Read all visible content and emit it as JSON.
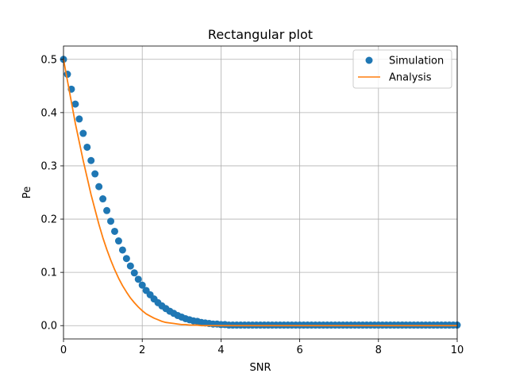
{
  "chart_data": {
    "type": "line",
    "title": "Rectangular plot",
    "xlabel": "SNR",
    "ylabel": "Pe",
    "xlim": [
      0,
      10
    ],
    "ylim": [
      -0.025,
      0.525
    ],
    "xticks": [
      0,
      2,
      4,
      6,
      8,
      10
    ],
    "xtick_labels": [
      "0",
      "2",
      "4",
      "6",
      "8",
      "10"
    ],
    "yticks": [
      0.0,
      0.1,
      0.2,
      0.3,
      0.4,
      0.5
    ],
    "ytick_labels": [
      "0.0",
      "0.1",
      "0.2",
      "0.3",
      "0.4",
      "0.5"
    ],
    "grid": true,
    "legend_position": "top-right",
    "x": [
      0.0,
      0.1,
      0.2,
      0.3,
      0.4,
      0.5,
      0.6,
      0.7,
      0.8,
      0.9,
      1.0,
      1.1,
      1.2,
      1.3,
      1.4,
      1.5,
      1.6,
      1.7,
      1.8,
      1.9,
      2.0,
      2.1,
      2.2,
      2.3,
      2.4,
      2.5,
      2.6,
      2.7,
      2.8,
      2.9,
      3.0,
      3.1,
      3.2,
      3.3,
      3.4,
      3.5,
      3.6,
      3.7,
      3.8,
      3.9,
      4.0,
      4.1,
      4.2,
      4.3,
      4.4,
      4.5,
      4.6,
      4.7,
      4.8,
      4.9,
      5.0,
      5.1,
      5.2,
      5.3,
      5.4,
      5.5,
      5.6,
      5.7,
      5.8,
      5.9,
      6.0,
      6.1,
      6.2,
      6.3,
      6.4,
      6.5,
      6.6,
      6.7,
      6.8,
      6.9,
      7.0,
      7.1,
      7.2,
      7.3,
      7.4,
      7.5,
      7.6,
      7.7,
      7.8,
      7.9,
      8.0,
      8.1,
      8.2,
      8.3,
      8.4,
      8.5,
      8.6,
      8.7,
      8.8,
      8.9,
      9.0,
      9.1,
      9.2,
      9.3,
      9.4,
      9.5,
      9.6,
      9.7,
      9.8,
      9.9,
      10.0
    ],
    "series": [
      {
        "name": "Simulation",
        "style": "markers",
        "color": "#1f77b4",
        "values": [
          0.5,
          0.472,
          0.444,
          0.416,
          0.388,
          0.361,
          0.335,
          0.31,
          0.285,
          0.261,
          0.238,
          0.216,
          0.196,
          0.177,
          0.159,
          0.142,
          0.126,
          0.112,
          0.099,
          0.087,
          0.076,
          0.066,
          0.058,
          0.05,
          0.043,
          0.037,
          0.032,
          0.027,
          0.023,
          0.019,
          0.016,
          0.013,
          0.011,
          0.009,
          0.008,
          0.006,
          0.005,
          0.004,
          0.003,
          0.003,
          0.002,
          0.002,
          0.001,
          0.001,
          0.001,
          0.001,
          0.001,
          0.001,
          0.001,
          0.001,
          0.001,
          0.001,
          0.001,
          0.001,
          0.001,
          0.001,
          0.001,
          0.001,
          0.001,
          0.001,
          0.001,
          0.001,
          0.001,
          0.001,
          0.001,
          0.001,
          0.001,
          0.001,
          0.001,
          0.001,
          0.001,
          0.001,
          0.001,
          0.001,
          0.001,
          0.001,
          0.001,
          0.001,
          0.001,
          0.001,
          0.001,
          0.001,
          0.001,
          0.001,
          0.001,
          0.001,
          0.001,
          0.001,
          0.001,
          0.001,
          0.001,
          0.001,
          0.001,
          0.001,
          0.001,
          0.001,
          0.001,
          0.001,
          0.001,
          0.001,
          0.001
        ]
      },
      {
        "name": "Analysis",
        "style": "line",
        "color": "#ff7f0e",
        "values": [
          0.5,
          0.46,
          0.42,
          0.38,
          0.345,
          0.31,
          0.278,
          0.246,
          0.218,
          0.19,
          0.165,
          0.143,
          0.123,
          0.105,
          0.089,
          0.075,
          0.063,
          0.052,
          0.043,
          0.035,
          0.028,
          0.022,
          0.018,
          0.014,
          0.011,
          0.008,
          0.006,
          0.005,
          0.004,
          0.003,
          0.002,
          0.002,
          0.001,
          0.001,
          0.001,
          0.0,
          0.0,
          0.0,
          0.0,
          0.0,
          0.0,
          0.0,
          0.0,
          0.0,
          0.0,
          0.0,
          0.0,
          0.0,
          0.0,
          0.0,
          0.0,
          0.0,
          0.0,
          0.0,
          0.0,
          0.0,
          0.0,
          0.0,
          0.0,
          0.0,
          0.0,
          0.0,
          0.0,
          0.0,
          0.0,
          0.0,
          0.0,
          0.0,
          0.0,
          0.0,
          0.0,
          0.0,
          0.0,
          0.0,
          0.0,
          0.0,
          0.0,
          0.0,
          0.0,
          0.0,
          0.0,
          0.0,
          0.0,
          0.0,
          0.0,
          0.0,
          0.0,
          0.0,
          0.0,
          0.0,
          0.0,
          0.0,
          0.0,
          0.0,
          0.0,
          0.0,
          0.0,
          0.0,
          0.0,
          0.0,
          0.0
        ]
      }
    ]
  }
}
